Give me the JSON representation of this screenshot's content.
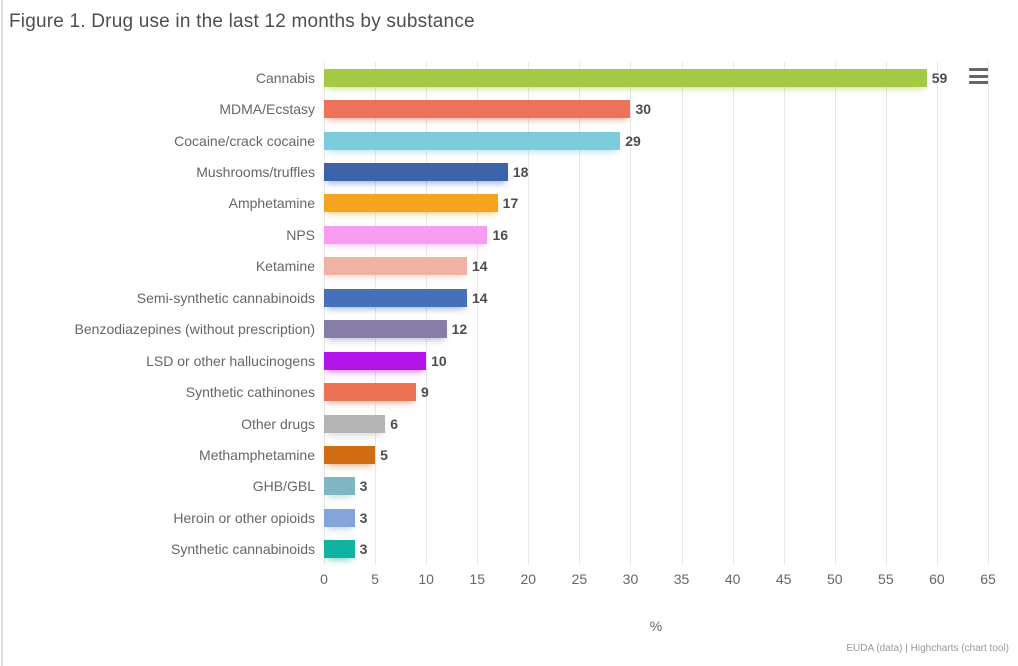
{
  "title": "Figure 1. Drug use in the last 12 months by substance",
  "export_menu": {
    "icon": "hamburger-menu-icon"
  },
  "credits": {
    "data_source": "EUDA (data)",
    "separator": " | ",
    "tool": "Highcharts (chart tool)"
  },
  "chart_data": {
    "type": "bar",
    "orientation": "horizontal",
    "title": "Figure 1. Drug use in the last 12 months by substance",
    "categories": [
      "Cannabis",
      "MDMA/Ecstasy",
      "Cocaine/crack cocaine",
      "Mushrooms/truffles",
      "Amphetamine",
      "NPS",
      "Ketamine",
      "Semi-synthetic cannabinoids",
      "Benzodiazepines (without prescription)",
      "LSD or other hallucinogens",
      "Synthetic cathinones",
      "Other drugs",
      "Methamphetamine",
      "GHB/GBL",
      "Heroin or other opioids",
      "Synthetic cannabinoids"
    ],
    "values": [
      59,
      30,
      29,
      18,
      17,
      16,
      14,
      14,
      12,
      10,
      9,
      6,
      5,
      3,
      3,
      3
    ],
    "colors": [
      "#a4ca45",
      "#ee7159",
      "#7cccdb",
      "#3d63a8",
      "#f6a41f",
      "#f89cf3",
      "#efb2a3",
      "#4571bb",
      "#867ea7",
      "#b315e9",
      "#ec7256",
      "#b4b4b4",
      "#d06d14",
      "#80b5c2",
      "#85a4d9",
      "#10b2a1"
    ],
    "xlabel": "%",
    "ylabel": "",
    "xlim": [
      0,
      65
    ],
    "xticks": [
      0,
      5,
      10,
      15,
      20,
      25,
      30,
      35,
      40,
      45,
      50,
      55,
      60,
      65
    ],
    "grid": true,
    "legend": "none",
    "data_labels": true
  }
}
